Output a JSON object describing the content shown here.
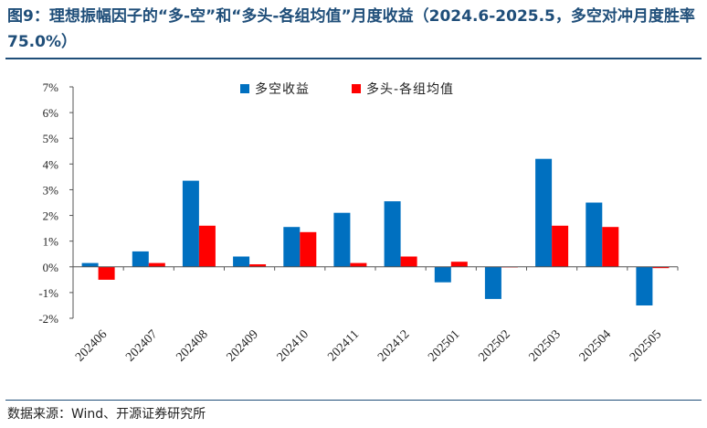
{
  "title": "图9：理想振幅因子的“多-空”和“多头-各组均值”月度收益（2024.6-2025.5，多空对冲月度胜率 75.0%）",
  "source": "数据来源：Wind、开源证券研究所",
  "colors": {
    "series1": "#0070c0",
    "series2": "#ff0000",
    "title": "#1f4e79"
  },
  "chart_data": {
    "type": "bar",
    "categories": [
      "202406",
      "202407",
      "202408",
      "202409",
      "202410",
      "202411",
      "202412",
      "202501",
      "202502",
      "202503",
      "202504",
      "202505"
    ],
    "series": [
      {
        "name": "多空收益",
        "values": [
          0.15,
          0.6,
          3.35,
          0.4,
          1.55,
          2.1,
          2.55,
          -0.6,
          -1.25,
          4.2,
          2.5,
          -1.5
        ]
      },
      {
        "name": "多头-各组均值",
        "values": [
          -0.5,
          0.15,
          1.6,
          0.1,
          1.35,
          0.15,
          0.4,
          0.2,
          0.0,
          1.6,
          1.55,
          -0.05
        ]
      }
    ],
    "ylim": [
      -2,
      7
    ],
    "yticks": [
      "-2%",
      "-1%",
      "0%",
      "1%",
      "2%",
      "3%",
      "4%",
      "5%",
      "6%",
      "7%"
    ],
    "legend_position": "top",
    "grid": false
  }
}
